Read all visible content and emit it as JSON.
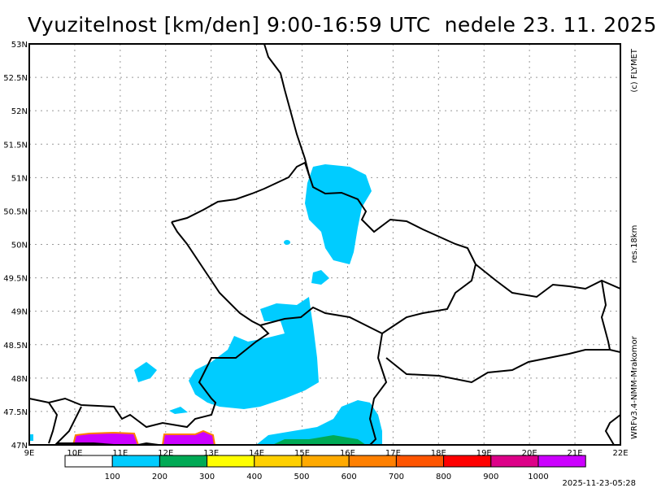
{
  "title": "Vyuzitelnost [km/den] 9:00-16:59 UTC  nedele 23. 11. 2025",
  "copyright": "(c) FLYMET",
  "resolution": "res.18km",
  "model": "WRFv3.4-NMM-Mrakomor",
  "timestamp": "2025-11-23-05:28",
  "axes": {
    "lon_labels": [
      "9E",
      "10E",
      "11E",
      "12E",
      "13E",
      "14E",
      "15E",
      "16E",
      "17E",
      "18E",
      "19E",
      "20E",
      "21E",
      "22E"
    ],
    "lat_labels": [
      "47N",
      "47.5N",
      "48N",
      "48.5N",
      "49N",
      "49.5N",
      "50N",
      "50.5N",
      "51N",
      "51.5N",
      "52N",
      "52.5N",
      "53N"
    ]
  },
  "legend": {
    "colors": [
      "#ffffff",
      "#00ccff",
      "#00aa55",
      "#ffff00",
      "#ffd000",
      "#ffaa00",
      "#ff8000",
      "#ff5500",
      "#ff0000",
      "#dd0088",
      "#cc00ff"
    ],
    "labels": [
      "100",
      "200",
      "300",
      "400",
      "500",
      "600",
      "700",
      "800",
      "900",
      "1000"
    ]
  }
}
